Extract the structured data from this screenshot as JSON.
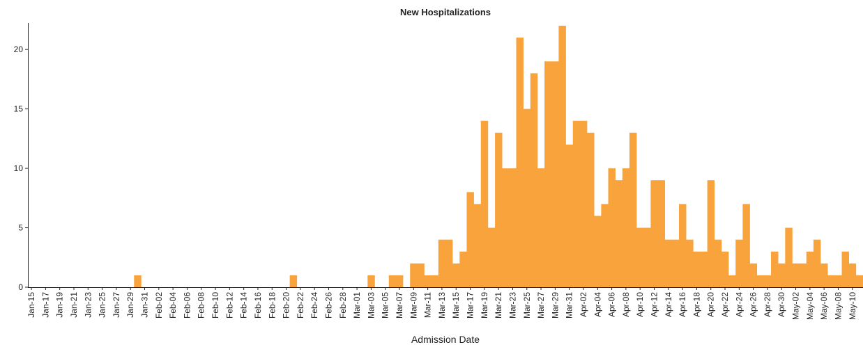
{
  "chart_data": {
    "type": "bar",
    "title": "New Hospitalizations",
    "x_label": "Admission Date",
    "color": "#f9a33c",
    "categories": [
      "Jan-15",
      null,
      "Jan-17",
      null,
      "Jan-19",
      null,
      "Jan-21",
      null,
      "Jan-23",
      null,
      "Jan-25",
      null,
      "Jan-27",
      null,
      "Jan-29",
      null,
      "Jan-31",
      null,
      "Feb-02",
      null,
      "Feb-04",
      null,
      "Feb-06",
      null,
      "Feb-08",
      null,
      "Feb-10",
      null,
      "Feb-12",
      null,
      "Feb-14",
      null,
      "Feb-16",
      null,
      "Feb-18",
      null,
      "Feb-20",
      null,
      "Feb-22",
      null,
      "Feb-24",
      null,
      "Feb-26",
      null,
      "Feb-28",
      null,
      "Mar-01",
      null,
      "Mar-03",
      null,
      "Mar-05",
      null,
      "Mar-07",
      null,
      "Mar-09",
      null,
      "Mar-11",
      null,
      "Mar-13",
      null,
      "Mar-15",
      null,
      "Mar-17",
      null,
      "Mar-19",
      null,
      "Mar-21",
      null,
      "Mar-23",
      null,
      "Mar-25",
      null,
      "Mar-27",
      null,
      "Mar-29",
      null,
      "Mar-31",
      null,
      "Apr-02",
      null,
      "Apr-04",
      null,
      "Apr-06",
      null,
      "Apr-08",
      null,
      "Apr-10",
      null,
      "Apr-12",
      null,
      "Apr-14",
      null,
      "Apr-16",
      null,
      "Apr-18",
      null,
      "Apr-20",
      null,
      "Apr-22",
      null,
      "Apr-24",
      null,
      "Apr-26",
      null,
      "Apr-28",
      null,
      "Apr-30",
      null,
      "May-02",
      null,
      "May-04",
      null,
      "May-06",
      null,
      "May-08",
      null,
      "May-10",
      null
    ],
    "values": [
      0,
      0,
      0,
      0,
      0,
      0,
      0,
      0,
      0,
      0,
      0,
      0,
      0,
      0,
      0,
      1,
      0,
      0,
      0,
      0,
      0,
      0,
      0,
      0,
      0,
      0,
      0,
      0,
      0,
      0,
      0,
      0,
      0,
      0,
      0,
      0,
      0,
      1,
      0,
      0,
      0,
      0,
      0,
      0,
      0,
      0,
      0,
      0,
      1,
      0,
      0,
      1,
      1,
      0,
      2,
      2,
      1,
      1,
      4,
      4,
      2,
      3,
      8,
      7,
      14,
      5,
      13,
      10,
      10,
      21,
      15,
      18,
      10,
      19,
      19,
      22,
      12,
      14,
      14,
      13,
      6,
      7,
      10,
      9,
      10,
      13,
      5,
      5,
      9,
      9,
      4,
      4,
      7,
      4,
      3,
      3,
      9,
      4,
      3,
      1,
      4,
      7,
      2,
      1,
      1,
      3,
      2,
      5,
      2,
      2,
      3,
      4,
      2,
      1,
      1,
      3,
      2,
      1
    ],
    "ylim": [
      0,
      22
    ],
    "yticks": [
      0,
      5,
      10,
      15,
      20
    ]
  }
}
